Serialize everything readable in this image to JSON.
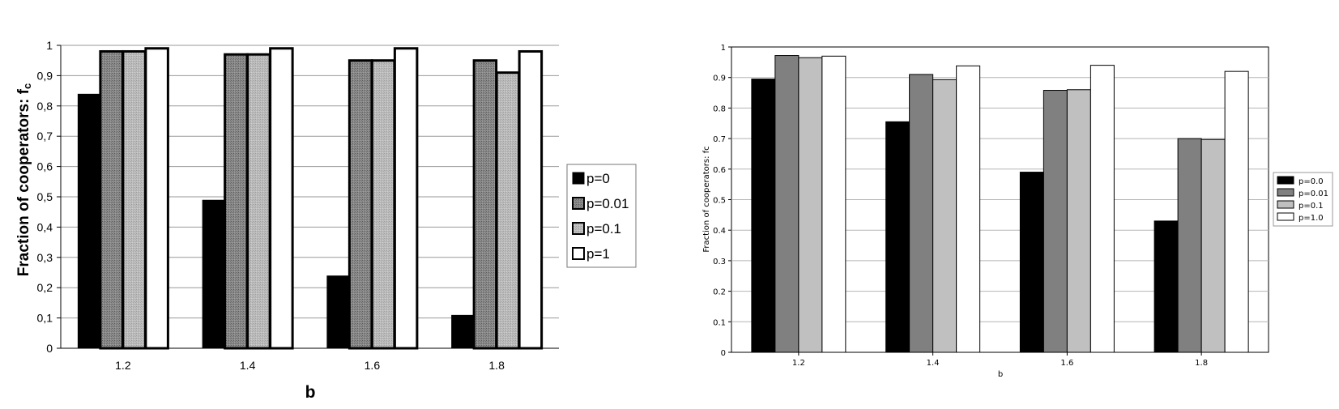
{
  "chart_data": [
    {
      "type": "bar",
      "categories": [
        "1.2",
        "1.4",
        "1.6",
        "1.8"
      ],
      "xlabel": "b",
      "ylabel": "Fraction of cooperators: f",
      "ylabel_sub": "c",
      "ylim": [
        0,
        1
      ],
      "yticks": [
        "0",
        "0,1",
        "0,2",
        "0,3",
        "0,4",
        "0,5",
        "0,6",
        "0,7",
        "0,8",
        "0,9",
        "1"
      ],
      "grid": true,
      "legend_position": "right",
      "series": [
        {
          "name": "p=0",
          "values": [
            0.84,
            0.49,
            0.24,
            0.11
          ],
          "color": "#000000"
        },
        {
          "name": "p=0.01",
          "values": [
            0.98,
            0.97,
            0.95,
            0.95
          ],
          "color": "#8c8c8c"
        },
        {
          "name": "p=0.1",
          "values": [
            0.98,
            0.97,
            0.95,
            0.91
          ],
          "color": "#bdbdbd"
        },
        {
          "name": "p=1",
          "values": [
            0.99,
            0.99,
            0.99,
            0.98
          ],
          "color": "#ffffff"
        }
      ]
    },
    {
      "type": "bar",
      "categories": [
        "1.2",
        "1.4",
        "1.6",
        "1.8"
      ],
      "xlabel": "b",
      "ylabel": "Fraction of cooperators: fc",
      "ylim": [
        0,
        1
      ],
      "yticks": [
        "0",
        "0.1",
        "0.2",
        "0.3",
        "0.4",
        "0.5",
        "0.6",
        "0.7",
        "0.8",
        "0.9",
        "1"
      ],
      "grid": true,
      "legend_position": "right",
      "series": [
        {
          "name": "p=0.0",
          "values": [
            0.895,
            0.755,
            0.59,
            0.43
          ],
          "color": "#000000"
        },
        {
          "name": "p=0.01",
          "values": [
            0.972,
            0.91,
            0.858,
            0.7
          ],
          "color": "#808080"
        },
        {
          "name": "p=0.1",
          "values": [
            0.965,
            0.893,
            0.86,
            0.697
          ],
          "color": "#c0c0c0"
        },
        {
          "name": "p=1.0",
          "values": [
            0.97,
            0.938,
            0.94,
            0.92
          ],
          "color": "#ffffff"
        }
      ]
    }
  ]
}
